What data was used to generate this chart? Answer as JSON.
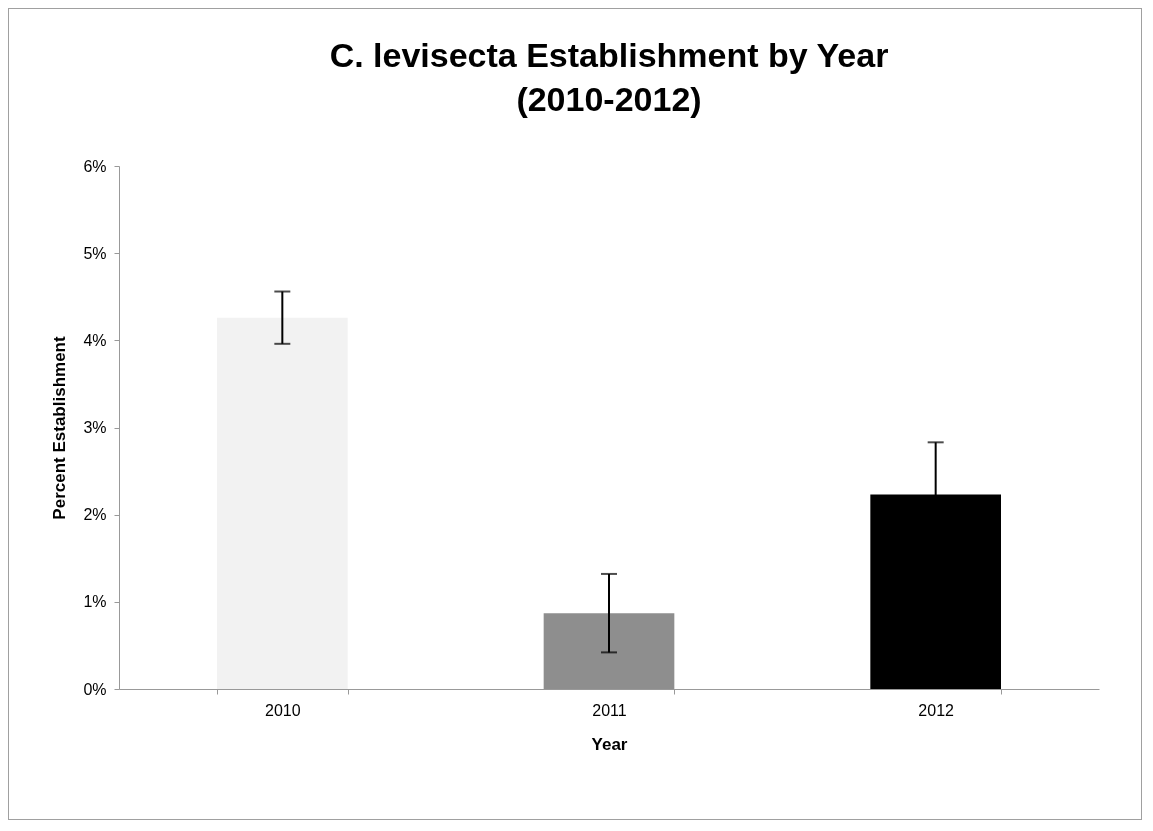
{
  "chart_data": {
    "type": "bar",
    "title": "C. levisecta Establishment by Year\n(2010-2012)",
    "xlabel": "Year",
    "ylabel": "Percent Establishment",
    "categories": [
      "2010",
      "2011",
      "2012"
    ],
    "values": [
      4.26,
      0.87,
      2.23
    ],
    "colors": [
      "#f2f2f2",
      "#8e8e8e",
      "#000000"
    ],
    "errors": [
      0.3,
      0.45,
      0.6
    ],
    "ylim": [
      0,
      6
    ],
    "yticks": [
      {
        "value": 0,
        "label": "0%"
      },
      {
        "value": 1,
        "label": "1%"
      },
      {
        "value": 2,
        "label": "2%"
      },
      {
        "value": 3,
        "label": "3%"
      },
      {
        "value": 4,
        "label": "4%"
      },
      {
        "value": 5,
        "label": "5%"
      },
      {
        "value": 6,
        "label": "6%"
      }
    ],
    "grid": false,
    "legend": false
  }
}
